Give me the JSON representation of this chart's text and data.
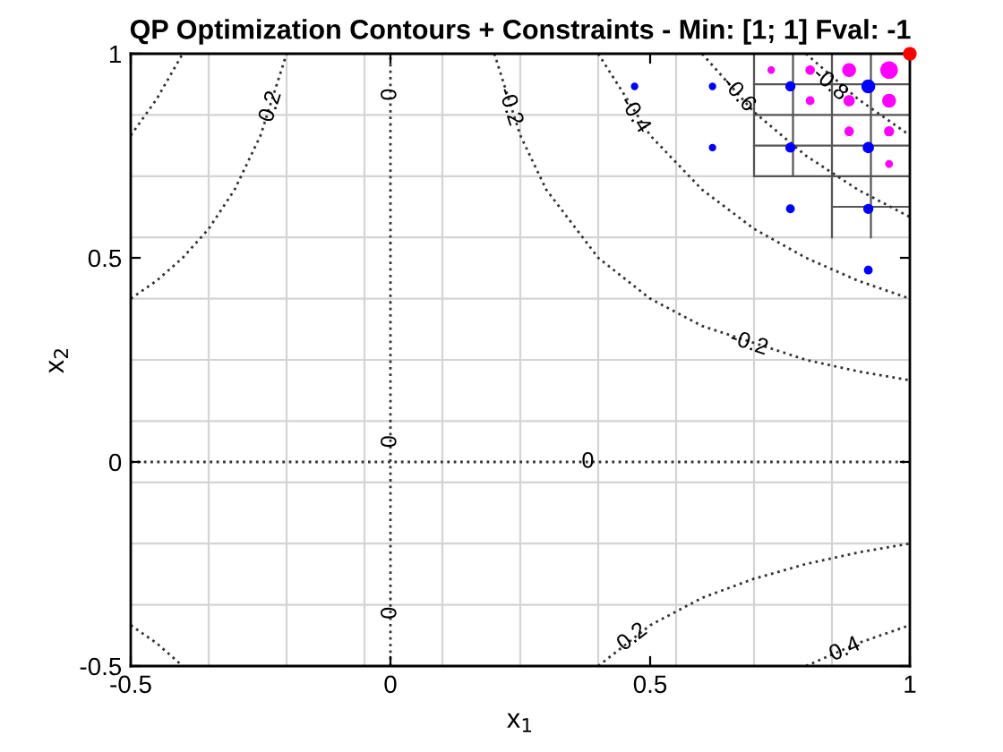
{
  "chart_data": {
    "type": "line",
    "title": "QP Optimization Contours + Constraints - Min: [1; 1] Fval: -1",
    "xlabel": "x$_{1}$",
    "ylabel": "x$_{2}$",
    "xlim": [
      -0.5,
      1
    ],
    "ylim": [
      -0.5,
      1
    ],
    "xticks": [
      -0.5,
      0,
      0.5,
      1
    ],
    "yticks": [
      -0.5,
      0,
      0.5,
      1
    ],
    "series": [
      {
        "color": "#d4d4d4",
        "line_style": "solid",
        "x": [
          -0.35,
          -0.35
        ],
        "values": [
          -0.5,
          1
        ]
      },
      {
        "color": "#d4d4d4",
        "line_style": "solid",
        "x": [
          -0.2,
          -0.2
        ],
        "values": [
          -0.5,
          1
        ]
      },
      {
        "color": "#d4d4d4",
        "line_style": "solid",
        "x": [
          -0.05,
          -0.05
        ],
        "values": [
          -0.5,
          1
        ]
      },
      {
        "color": "#d4d4d4",
        "line_style": "solid",
        "x": [
          0.1,
          0.1
        ],
        "values": [
          -0.5,
          1
        ]
      },
      {
        "color": "#d4d4d4",
        "line_style": "solid",
        "x": [
          0.25,
          0.25
        ],
        "values": [
          -0.5,
          1
        ]
      },
      {
        "color": "#d4d4d4",
        "line_style": "solid",
        "x": [
          0.4,
          0.4
        ],
        "values": [
          -0.5,
          1
        ]
      },
      {
        "color": "#d4d4d4",
        "line_style": "solid",
        "x": [
          0.55,
          0.55
        ],
        "values": [
          -0.5,
          1
        ]
      },
      {
        "color": "#d4d4d4",
        "line_style": "solid",
        "x": [
          0.7,
          0.7
        ],
        "values": [
          -0.5,
          1
        ]
      },
      {
        "color": "#d4d4d4",
        "line_style": "solid",
        "x": [
          0.85,
          0.85
        ],
        "values": [
          -0.5,
          1
        ]
      },
      {
        "color": "#d4d4d4",
        "line_style": "solid",
        "x": [
          -0.5,
          1
        ],
        "values": [
          -0.35,
          -0.35
        ]
      },
      {
        "color": "#d4d4d4",
        "line_style": "solid",
        "x": [
          -0.5,
          1
        ],
        "values": [
          -0.2,
          -0.2
        ]
      },
      {
        "color": "#d4d4d4",
        "line_style": "solid",
        "x": [
          -0.5,
          1
        ],
        "values": [
          -0.05,
          -0.05
        ]
      },
      {
        "color": "#d4d4d4",
        "line_style": "solid",
        "x": [
          -0.5,
          1
        ],
        "values": [
          0.1,
          0.1
        ]
      },
      {
        "color": "#d4d4d4",
        "line_style": "solid",
        "x": [
          -0.5,
          1
        ],
        "values": [
          0.25,
          0.25
        ]
      },
      {
        "color": "#d4d4d4",
        "line_style": "solid",
        "x": [
          -0.5,
          1
        ],
        "values": [
          0.4,
          0.4
        ]
      },
      {
        "color": "#d4d4d4",
        "line_style": "solid",
        "x": [
          -0.5,
          1
        ],
        "values": [
          0.55,
          0.55
        ]
      },
      {
        "color": "#d4d4d4",
        "line_style": "solid",
        "x": [
          -0.5,
          1
        ],
        "values": [
          0.7,
          0.7
        ]
      },
      {
        "color": "#d4d4d4",
        "line_style": "solid",
        "x": [
          -0.5,
          0.7
        ],
        "values": [
          0.85,
          0.85
        ]
      },
      {
        "color": "#555555",
        "line_style": "solid",
        "x": [
          0.7,
          1
        ],
        "values": [
          0.925,
          0.925
        ]
      },
      {
        "color": "#555555",
        "line_style": "solid",
        "x": [
          0.7,
          1
        ],
        "values": [
          0.85,
          0.85
        ]
      },
      {
        "color": "#555555",
        "line_style": "solid",
        "x": [
          0.7,
          1
        ],
        "values": [
          0.775,
          0.775
        ]
      },
      {
        "color": "#555555",
        "line_style": "solid",
        "x": [
          0.7,
          1
        ],
        "values": [
          0.7,
          0.7
        ]
      },
      {
        "color": "#555555",
        "line_style": "solid",
        "x": [
          0.85,
          1
        ],
        "values": [
          0.625,
          0.625
        ]
      },
      {
        "color": "#555555",
        "line_style": "solid",
        "x": [
          0.7,
          0.7
        ],
        "values": [
          0.7,
          1
        ]
      },
      {
        "color": "#555555",
        "line_style": "solid",
        "x": [
          0.775,
          0.775
        ],
        "values": [
          0.7,
          1
        ]
      },
      {
        "color": "#555555",
        "line_style": "solid",
        "x": [
          0.85,
          0.85
        ],
        "values": [
          0.55,
          1
        ]
      },
      {
        "color": "#555555",
        "line_style": "solid",
        "x": [
          0.925,
          0.925
        ],
        "values": [
          0.55,
          1
        ]
      },
      {
        "color": "#333333",
        "line_style": "dotted",
        "x": [
          -0.5,
          -0.45,
          -0.4,
          -0.35,
          -0.3,
          -0.25,
          -0.2
        ],
        "values": [
          0.4,
          0.444,
          0.5,
          0.571,
          0.667,
          0.8,
          1.0
        ]
      },
      {
        "color": "#333333",
        "line_style": "dotted",
        "x": [
          -0.5,
          -0.45,
          -0.4
        ],
        "values": [
          0.8,
          0.889,
          1.0
        ]
      },
      {
        "color": "#333333",
        "line_style": "dotted",
        "x": [
          -0.5,
          -0.45,
          -0.4
        ],
        "values": [
          -0.4,
          -0.444,
          -0.5
        ]
      },
      {
        "color": "#333333",
        "line_style": "dotted",
        "x": [
          0,
          0
        ],
        "values": [
          -0.5,
          1
        ]
      },
      {
        "color": "#333333",
        "line_style": "dotted",
        "x": [
          -0.5,
          1
        ],
        "values": [
          0,
          0
        ]
      },
      {
        "color": "#333333",
        "line_style": "dotted",
        "x": [
          0.2,
          0.25,
          0.3,
          0.4,
          0.5,
          0.6,
          0.8,
          0.9,
          1.0
        ],
        "values": [
          1.0,
          0.8,
          0.667,
          0.5,
          0.4,
          0.333,
          0.25,
          0.222,
          0.2
        ]
      },
      {
        "color": "#333333",
        "line_style": "dotted",
        "x": [
          0.4,
          0.5,
          0.6,
          0.7,
          0.8,
          0.9,
          1.0
        ],
        "values": [
          1.0,
          0.8,
          0.667,
          0.571,
          0.5,
          0.444,
          0.4
        ]
      },
      {
        "color": "#333333",
        "line_style": "dotted",
        "x": [
          0.6,
          0.7,
          0.8,
          0.9,
          1.0
        ],
        "values": [
          1.0,
          0.857,
          0.75,
          0.667,
          0.6
        ]
      },
      {
        "color": "#333333",
        "line_style": "dotted",
        "x": [
          0.8,
          0.9,
          1.0
        ],
        "values": [
          1.0,
          0.889,
          0.8
        ]
      },
      {
        "color": "#333333",
        "line_style": "dotted",
        "x": [
          0.4,
          0.5,
          0.6,
          0.7,
          0.8,
          0.9,
          1.0
        ],
        "values": [
          -0.5,
          -0.4,
          -0.333,
          -0.286,
          -0.25,
          -0.222,
          -0.2
        ]
      },
      {
        "color": "#333333",
        "line_style": "dotted",
        "x": [
          0.8,
          0.9,
          1.0
        ],
        "values": [
          -0.5,
          -0.444,
          -0.4
        ]
      },
      {
        "type": "bubble",
        "color": "#0000ff",
        "x": [
          0.47,
          0.62,
          0.77,
          0.92,
          0.62,
          0.77,
          0.92,
          0.77,
          0.92,
          0.92
        ],
        "values": [
          0.92,
          0.92,
          0.92,
          0.92,
          0.77,
          0.77,
          0.77,
          0.62,
          0.62,
          0.47
        ],
        "sizes": [
          0.18,
          0.18,
          0.33,
          0.62,
          0.18,
          0.33,
          0.41,
          0.25,
          0.33,
          0.25
        ]
      },
      {
        "type": "bubble",
        "color": "#ff00ff",
        "x": [
          0.733,
          0.808,
          0.808,
          0.883,
          0.883,
          0.883,
          0.96,
          0.96,
          0.96,
          0.96
        ],
        "values": [
          0.96,
          0.96,
          0.885,
          0.96,
          0.885,
          0.81,
          0.96,
          0.885,
          0.81,
          0.73
        ],
        "sizes": [
          0.18,
          0.29,
          0.25,
          0.62,
          0.41,
          0.29,
          1.0,
          0.62,
          0.33,
          0.2
        ]
      },
      {
        "type": "bubble",
        "color": "#ff0000",
        "x": [
          1.0
        ],
        "values": [
          1.0
        ],
        "sizes": [
          0.6
        ]
      }
    ],
    "annotations": [
      {
        "text": "0.2",
        "x": -0.23,
        "y": 0.87
      },
      {
        "text": "0",
        "x": 0,
        "y": 0.9
      },
      {
        "text": "0",
        "x": 0,
        "y": 0.05
      },
      {
        "text": "0",
        "x": 0,
        "y": -0.37
      },
      {
        "text": "0",
        "x": 0.38,
        "y": 0
      },
      {
        "text": "-0.2",
        "x": 0.23,
        "y": 0.87
      },
      {
        "text": "-0.4",
        "x": 0.47,
        "y": 0.85
      },
      {
        "text": "-0.6",
        "x": 0.67,
        "y": 0.9
      },
      {
        "text": "-0.8",
        "x": 0.846,
        "y": 0.925
      },
      {
        "text": "-0.2",
        "x": 0.69,
        "y": 0.29
      },
      {
        "text": "0.2",
        "x": 0.466,
        "y": -0.43
      },
      {
        "text": "0.4",
        "x": 0.875,
        "y": -0.46
      }
    ]
  }
}
